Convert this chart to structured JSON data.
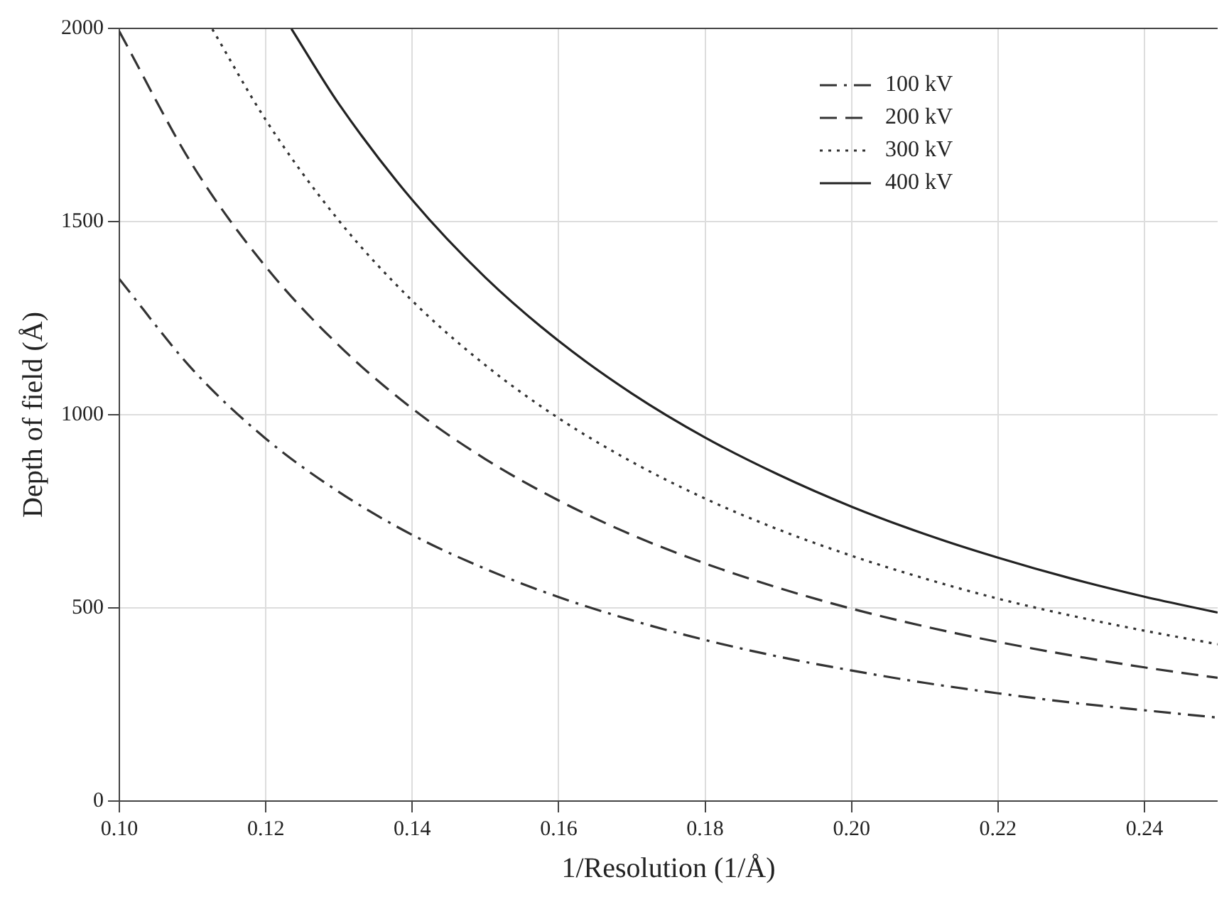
{
  "chart_data": {
    "type": "line",
    "xlabel": "1/Resolution (1/Å)",
    "ylabel": "Depth of field (Å)",
    "xlim": [
      0.1,
      0.25
    ],
    "xticks": [
      {
        "value": 0.1,
        "label": "0.10"
      },
      0.12,
      0.14,
      0.16,
      0.18,
      {
        "value": 0.2,
        "label": "0.20"
      },
      0.22,
      0.24
    ],
    "ylim": [
      0,
      2000
    ],
    "yticks": [
      0,
      500,
      1000,
      1500,
      2000
    ],
    "grid": true,
    "legend": "top right",
    "marker": "none",
    "series": [
      {
        "name": "100 kV",
        "color": "#333333",
        "line_style": "dashdot",
        "x": [
          0.1,
          0.11,
          0.12,
          0.13,
          0.14,
          0.15,
          0.16,
          0.17,
          0.18,
          0.19,
          0.2,
          0.21,
          0.22,
          0.23,
          0.24,
          0.25
        ],
        "values": [
          1351,
          1117,
          938,
          800,
          689,
          601,
          528,
          468,
          417,
          374,
          338,
          306,
          279,
          255,
          235,
          216
        ]
      },
      {
        "name": "200 kV",
        "color": "#333333",
        "line_style": "dashed",
        "x": [
          0.1,
          0.11,
          0.12,
          0.13,
          0.14,
          0.15,
          0.16,
          0.17,
          0.18,
          0.19,
          0.2,
          0.21,
          0.22,
          0.23,
          0.24,
          0.25
        ],
        "values": [
          1992,
          1646,
          1383,
          1179,
          1016,
          885,
          778,
          689,
          615,
          552,
          498,
          452,
          412,
          377,
          346,
          319
        ]
      },
      {
        "name": "300 kV",
        "color": "#333333",
        "line_style": "dotted",
        "x": [
          0.1127,
          0.12,
          0.13,
          0.14,
          0.15,
          0.16,
          0.17,
          0.18,
          0.19,
          0.2,
          0.21,
          0.22,
          0.23,
          0.24,
          0.25
        ],
        "values": [
          1998,
          1763,
          1502,
          1295,
          1128,
          991,
          878,
          783,
          703,
          635,
          576,
          524,
          480,
          441,
          406
        ]
      },
      {
        "name": "400 kV",
        "color": "#222222",
        "line_style": "solid",
        "x": [
          0.1235,
          0.13,
          0.14,
          0.15,
          0.16,
          0.17,
          0.18,
          0.19,
          0.2,
          0.21,
          0.22,
          0.23,
          0.24,
          0.25
        ],
        "values": [
          1999,
          1804,
          1556,
          1355,
          1191,
          1055,
          941,
          845,
          762,
          691,
          630,
          576,
          529,
          488
        ]
      }
    ]
  }
}
